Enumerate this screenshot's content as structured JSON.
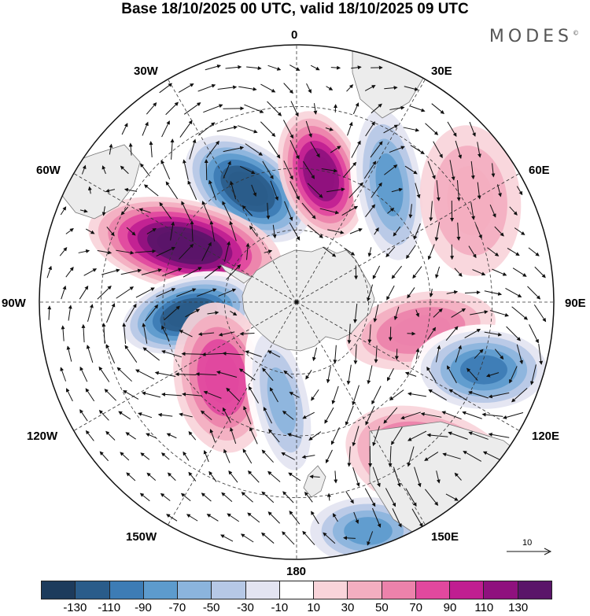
{
  "title": "Base 18/10/2025 00 UTC, valid 18/10/2025 09 UTC",
  "brand": "MODES",
  "brand_mark": "©",
  "map": {
    "projection": "south-polar-stereographic",
    "meridian_labels": [
      "0",
      "30E",
      "60E",
      "90E",
      "120E",
      "150E",
      "180",
      "150W",
      "120W",
      "90W",
      "60W",
      "30W"
    ],
    "colors": {
      "land": "#ececec",
      "coast": "#777777",
      "grid": "#333333"
    }
  },
  "reference_vector": {
    "label": "10"
  },
  "colorbar": {
    "ticks": [
      "-130",
      "-110",
      "-90",
      "-70",
      "-50",
      "-30",
      "-10",
      "10",
      "30",
      "50",
      "70",
      "90",
      "110",
      "130"
    ],
    "colors": [
      "#1d3b5c",
      "#2a5c8a",
      "#3d7cb5",
      "#5d9bcd",
      "#8bb4dd",
      "#b6c8e6",
      "#e3e4f1",
      "#ffffff",
      "#f9d4da",
      "#f3aec0",
      "#ec82ab",
      "#e1489e",
      "#c01e91",
      "#8f117e",
      "#5a1569"
    ]
  },
  "anomalies": [
    {
      "kind": "neg",
      "peak": -130,
      "color_core": "#2a5c8a"
    },
    {
      "kind": "pos",
      "peak": 110,
      "color_core": "#8f117e"
    },
    {
      "kind": "pos",
      "peak": 130,
      "color_core": "#5a1569"
    },
    {
      "kind": "neg",
      "peak": -130,
      "color_core": "#2a5c8a"
    },
    {
      "kind": "neg",
      "peak": -70,
      "color_core": "#5d9bcd"
    },
    {
      "kind": "pos",
      "peak": 30,
      "color_core": "#f3aec0"
    },
    {
      "kind": "pos",
      "peak": 50,
      "color_core": "#ec82ab"
    },
    {
      "kind": "neg",
      "peak": -90,
      "color_core": "#3d7cb5"
    },
    {
      "kind": "pos",
      "peak": 90,
      "color_core": "#c01e91"
    },
    {
      "kind": "neg",
      "peak": -70,
      "color_core": "#5d9bcd"
    },
    {
      "kind": "pos",
      "peak": 70,
      "color_core": "#e1489e"
    },
    {
      "kind": "neg",
      "peak": -50,
      "color_core": "#8bb4dd"
    }
  ]
}
